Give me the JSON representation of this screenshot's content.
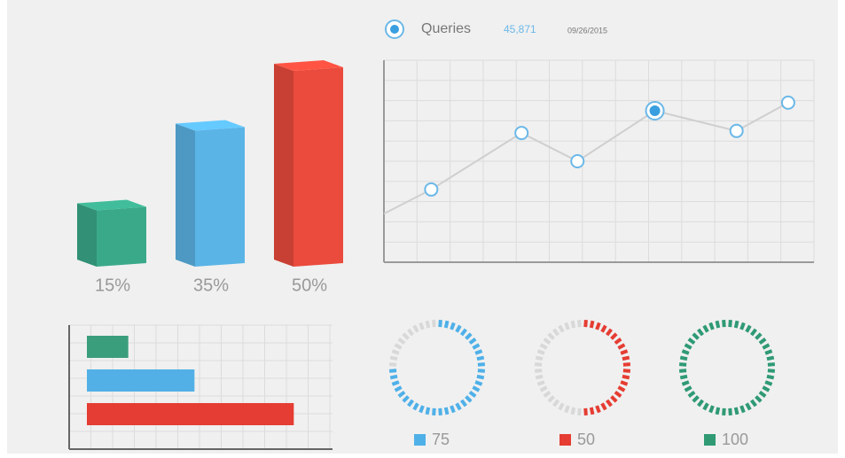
{
  "chart_data": [
    {
      "type": "bar",
      "values": [
        15,
        35,
        50
      ],
      "value_labels": [
        "15%",
        "35%",
        "50%"
      ],
      "colors": [
        "#3aa98a",
        "#5ab4e6",
        "#ea4b3c"
      ],
      "ylim": [
        0,
        50
      ]
    },
    {
      "type": "line",
      "legend": "Queries",
      "annotations": [
        "45,871",
        "09/26/2015"
      ],
      "x": [
        0,
        1.1,
        3.2,
        4.5,
        6.3,
        8.2,
        9.4
      ],
      "values": [
        2.4,
        3.6,
        6.4,
        5.0,
        7.5,
        6.5,
        7.9
      ],
      "xlim": [
        0,
        10
      ],
      "ylim": [
        0,
        10
      ],
      "color": "#6bb8e8",
      "grid": true,
      "highlight": 4
    },
    {
      "type": "hbar",
      "values": [
        2,
        5.2,
        10
      ],
      "colors": [
        "#3a9e7c",
        "#52b0e6",
        "#e53d33"
      ],
      "xlim": [
        0,
        12
      ],
      "grid": true
    },
    {
      "type": "donut",
      "values": [
        75,
        50,
        100
      ],
      "colors": [
        "#4fb0e8",
        "#e53d33",
        "#2f9a74"
      ],
      "ylim": [
        0,
        100
      ]
    }
  ]
}
